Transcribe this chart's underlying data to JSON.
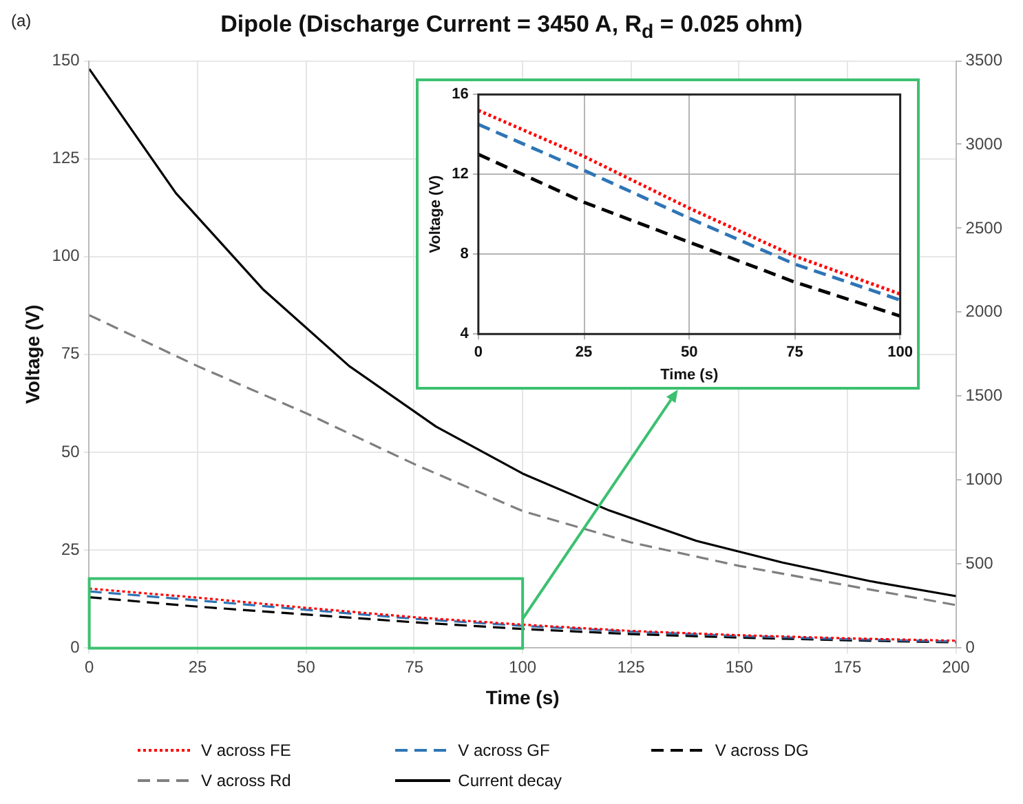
{
  "chart_data": [
    {
      "type": "line",
      "title": "Dipole (Discharge Current = 3450 A, R$_{d}$  = 0.025 ohm)",
      "annotations": [
        "(a)"
      ],
      "xlabel": "Time (s)",
      "ylabel": "Voltage (V)",
      "xlim": [
        0,
        200
      ],
      "xticks": [
        0,
        25,
        50,
        75,
        100,
        125,
        150,
        175,
        200
      ],
      "ylim": [
        0,
        150
      ],
      "yticks": [
        0,
        25,
        50,
        75,
        100,
        125,
        150
      ],
      "y2lim": [
        0,
        3500
      ],
      "y2ticks": [
        0,
        500,
        1000,
        1500,
        2000,
        2500,
        3000,
        3500
      ],
      "grid": true,
      "legend": "bottom",
      "marker": "none",
      "series": [
        {
          "name": "V across FE",
          "color": "#ff0000",
          "line_style": "dotted",
          "x": [
            0,
            25,
            50,
            75,
            100,
            125,
            150,
            175,
            200
          ],
          "values": [
            15.2,
            12.9,
            10.3,
            7.9,
            6.0,
            4.4,
            3.3,
            2.5,
            1.9
          ]
        },
        {
          "name": "V across GF",
          "color": "#2e75b6",
          "line_style": "dashed",
          "x": [
            0,
            25,
            50,
            75,
            100,
            125,
            150,
            175,
            200
          ],
          "values": [
            14.5,
            12.2,
            9.8,
            7.5,
            5.7,
            4.2,
            3.1,
            2.3,
            1.7
          ]
        },
        {
          "name": "V across DG",
          "color": "#000000",
          "line_style": "dashed",
          "x": [
            0,
            25,
            50,
            75,
            100,
            125,
            150,
            175,
            200
          ],
          "values": [
            13.0,
            10.6,
            8.6,
            6.6,
            4.9,
            3.6,
            2.7,
            2.0,
            1.5
          ]
        },
        {
          "name": "V across Rd",
          "color": "#7f7f7f",
          "line_style": "dashed",
          "x": [
            0,
            25,
            50,
            75,
            100,
            125,
            150,
            175,
            200
          ],
          "values": [
            85,
            72,
            60,
            47,
            35,
            27,
            21,
            16,
            11
          ]
        },
        {
          "name": "Current decay",
          "color": "#000000",
          "line_style": "solid",
          "axis": "y2",
          "x": [
            0,
            20,
            40,
            60,
            80,
            100,
            120,
            140,
            160,
            180,
            200
          ],
          "values": [
            3450,
            2710,
            2140,
            1680,
            1320,
            1040,
            820,
            640,
            510,
            400,
            310
          ]
        }
      ]
    },
    {
      "type": "line",
      "xlabel": "Time (s)",
      "ylabel": "Voltage (V)",
      "xlim": [
        0,
        100
      ],
      "xticks": [
        0,
        25,
        50,
        75,
        100
      ],
      "ylim": [
        4,
        16
      ],
      "yticks": [
        4,
        8,
        12,
        16
      ],
      "grid": true,
      "marker": "none",
      "series": [
        {
          "color": "#ff0000",
          "line_style": "dotted",
          "x": [
            0,
            25,
            50,
            75,
            100
          ],
          "values": [
            15.2,
            12.9,
            10.3,
            7.9,
            6.0
          ]
        },
        {
          "color": "#2e75b6",
          "line_style": "dashed",
          "x": [
            0,
            25,
            50,
            75,
            100
          ],
          "values": [
            14.5,
            12.2,
            9.8,
            7.5,
            5.7
          ]
        },
        {
          "color": "#000000",
          "line_style": "dashed",
          "x": [
            0,
            25,
            50,
            75,
            100
          ],
          "values": [
            13.0,
            10.6,
            8.6,
            6.6,
            4.9
          ]
        }
      ]
    }
  ]
}
